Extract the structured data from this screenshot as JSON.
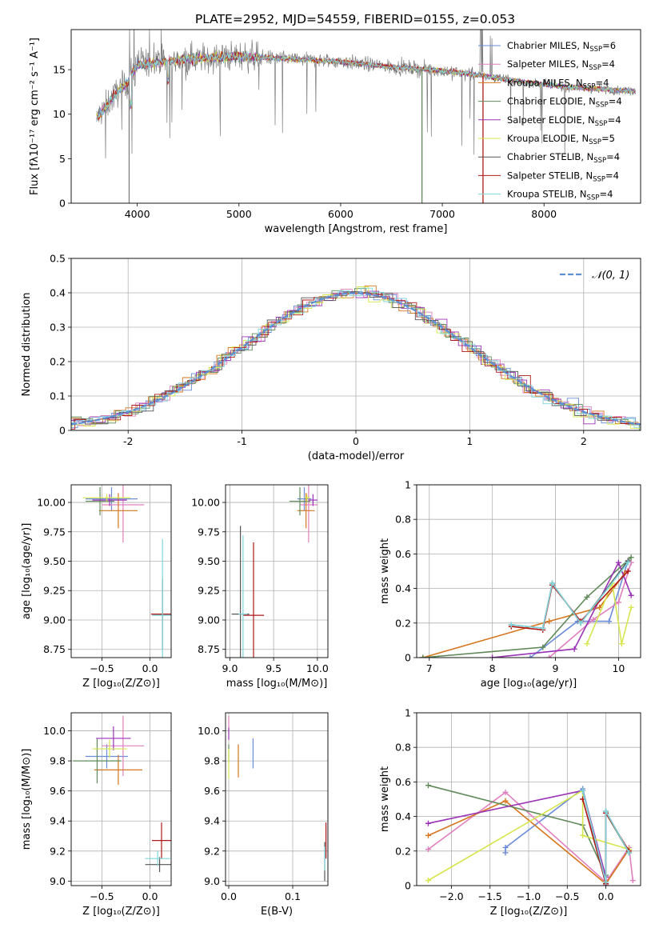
{
  "title": "PLATE=2952, MJD=54559, FIBERID=0155, z=0.053",
  "colors": [
    "#6a8cd8",
    "#e07fbf",
    "#d6761e",
    "#5f8a58",
    "#9a33b5",
    "#d6e64c",
    "#555555",
    "#b01818",
    "#7fd6dc"
  ],
  "chart_data": [
    {
      "id": "spectrum",
      "type": "line",
      "xlabel": "wavelength [Angstrom, rest frame]",
      "ylabel": "Flux [fλ10⁻¹⁷ erg cm⁻² s⁻¹ A⁻¹]",
      "xlim": [
        3350,
        8950
      ],
      "ylim": [
        0,
        19.5
      ],
      "xticks": [
        4000,
        5000,
        6000,
        7000,
        8000
      ],
      "yticks": [
        0,
        5,
        10,
        15
      ],
      "grid": false,
      "legend": "top-right",
      "legend_entries": [
        "Chabrier MILES, N_SSP=6",
        "Salpeter MILES, N_SSP=4",
        "Kroupa MILES, N_SSP=4",
        "Chabrier ELODIE, N_SSP=4",
        "Salpeter ELODIE, N_SSP=4",
        "Kroupa ELODIE, N_SSP=5",
        "Chabrier STELIB, N_SSP=4",
        "Salpeter STELIB, N_SSP=4",
        "Kroupa STELIB, N_SSP=4"
      ],
      "continuum": [
        [
          3600,
          9.5
        ],
        [
          3700,
          11
        ],
        [
          3800,
          12.5
        ],
        [
          3900,
          13.5
        ],
        [
          4000,
          15.5
        ],
        [
          4200,
          15.8
        ],
        [
          4500,
          16.2
        ],
        [
          5000,
          16.5
        ],
        [
          5500,
          16.2
        ],
        [
          6000,
          15.9
        ],
        [
          6500,
          15.3
        ],
        [
          7000,
          14.9
        ],
        [
          7400,
          14.3
        ],
        [
          7800,
          13.6
        ],
        [
          8200,
          13.1
        ],
        [
          8700,
          12.7
        ],
        [
          8900,
          12.6
        ]
      ]
    },
    {
      "id": "residuals",
      "type": "histogram",
      "xlabel": "(data-model)/error",
      "ylabel": "Normed distribution",
      "xlim": [
        -2.5,
        2.5
      ],
      "ylim": [
        0,
        0.5
      ],
      "xticks": [
        -2,
        -1,
        0,
        1,
        2
      ],
      "yticks": [
        0.0,
        0.1,
        0.2,
        0.3,
        0.4,
        0.5
      ],
      "grid": true,
      "legend": "top-right",
      "legend_entries": [
        "𝒩(0, 1)"
      ],
      "bin_width": 0.1,
      "distribution": {
        "mean": 0,
        "sigma": 1
      }
    },
    {
      "id": "age-vs-Z",
      "type": "errorbar",
      "xlabel": "Z [log₁₀(Z/Z⊙)]",
      "ylabel": "age  [log₁₀(age/yr)]",
      "xlim": [
        -0.82,
        0.22
      ],
      "ylim": [
        8.68,
        10.15
      ],
      "xticks": [
        -0.5,
        0.0
      ],
      "xtick_labels": [
        "−0.5",
        "0.0"
      ],
      "yticks": [
        8.75,
        9.0,
        9.25,
        9.5,
        9.75,
        10.0
      ],
      "ytick_labels": [
        "8.75",
        "9.00",
        "9.25",
        "9.50",
        "9.75",
        "10.00"
      ],
      "grid": true,
      "points": [
        {
          "x": -0.4,
          "y": 10.03,
          "xerr": 0.27,
          "yerr": 0.1,
          "c": 0
        },
        {
          "x": -0.28,
          "y": 9.98,
          "xerr": 0.22,
          "yerr": 0.32,
          "c": 1
        },
        {
          "x": -0.33,
          "y": 9.93,
          "xerr": 0.2,
          "yerr": 0.15,
          "c": 2
        },
        {
          "x": -0.52,
          "y": 10.01,
          "xerr": 0.15,
          "yerr": 0.12,
          "c": 3
        },
        {
          "x": -0.42,
          "y": 10.02,
          "xerr": 0.18,
          "yerr": 0.05,
          "c": 4
        },
        {
          "x": -0.45,
          "y": 10.04,
          "xerr": 0.25,
          "yerr": 0.03,
          "c": 5
        },
        {
          "x": 0.13,
          "y": 9.05,
          "xerr": 0.1,
          "yerr": 0.3,
          "c": 6
        },
        {
          "x": 0.13,
          "y": 9.05,
          "xerr": 0.12,
          "yerr": 0.03,
          "c": 7
        },
        {
          "x": 0.13,
          "y": 9.04,
          "xerr": 0.11,
          "yerr": 0.65,
          "c": 8
        }
      ]
    },
    {
      "id": "age-vs-mass",
      "type": "errorbar",
      "xlabel": "mass [log₁₀(M/M⊙)]",
      "ylabel": "",
      "xlim": [
        8.95,
        10.12
      ],
      "ylim": [
        8.68,
        10.15
      ],
      "xticks": [
        9.0,
        9.5,
        10.0
      ],
      "xtick_labels": [
        "9.0",
        "9.5",
        "10.0"
      ],
      "yticks": [
        8.75,
        9.0,
        9.25,
        9.5,
        9.75,
        10.0
      ],
      "ytick_labels": [
        "8.75",
        "9.00",
        "9.25",
        "9.50",
        "9.75",
        "10.00"
      ],
      "grid": true,
      "points": [
        {
          "x": 9.85,
          "y": 10.03,
          "xerr": 0.08,
          "yerr": 0.1,
          "c": 0
        },
        {
          "x": 9.9,
          "y": 9.98,
          "xerr": 0.1,
          "yerr": 0.32,
          "c": 1
        },
        {
          "x": 9.87,
          "y": 9.93,
          "xerr": 0.1,
          "yerr": 0.15,
          "c": 2
        },
        {
          "x": 9.8,
          "y": 10.01,
          "xerr": 0.12,
          "yerr": 0.12,
          "c": 3
        },
        {
          "x": 9.95,
          "y": 10.02,
          "xerr": 0.05,
          "yerr": 0.05,
          "c": 4
        },
        {
          "x": 9.88,
          "y": 10.04,
          "xerr": 0.03,
          "yerr": 0.03,
          "c": 5
        },
        {
          "x": 9.12,
          "y": 9.05,
          "xerr": 0.1,
          "yerr": 0.75,
          "c": 6
        },
        {
          "x": 9.27,
          "y": 9.04,
          "xerr": 0.12,
          "yerr": 0.62,
          "c": 7
        },
        {
          "x": 9.15,
          "y": 9.05,
          "xerr": 0.05,
          "yerr": 0.67,
          "c": 8
        }
      ]
    },
    {
      "id": "mass-weight-vs-age",
      "type": "line",
      "xlabel": "age  [log₁₀(age/yr)]",
      "ylabel": "mass weight",
      "xlim": [
        6.8,
        10.35
      ],
      "ylim": [
        0,
        1
      ],
      "xticks": [
        7,
        8,
        9,
        10
      ],
      "yticks": [
        0.0,
        0.2,
        0.4,
        0.6,
        0.8,
        1.0
      ],
      "grid": true,
      "series": [
        {
          "c": 0,
          "x": [
            8.6,
            9.35,
            9.85,
            10.15
          ],
          "y": [
            0.0,
            0.21,
            0.21,
            0.56
          ]
        },
        {
          "c": 1,
          "x": [
            8.9,
            9.6,
            10.0,
            10.2
          ],
          "y": [
            0.0,
            0.22,
            0.32,
            0.55
          ]
        },
        {
          "c": 2,
          "x": [
            6.9,
            8.9,
            9.7,
            10.1
          ],
          "y": [
            0.0,
            0.21,
            0.29,
            0.49
          ]
        },
        {
          "c": 3,
          "x": [
            6.9,
            8.8,
            9.5,
            10.2
          ],
          "y": [
            0.0,
            0.06,
            0.35,
            0.58
          ]
        },
        {
          "c": 4,
          "x": [
            8.0,
            9.3,
            10.0,
            10.2
          ],
          "y": [
            0.0,
            0.05,
            0.55,
            0.36
          ]
        },
        {
          "c": 5,
          "x": [
            9.5,
            9.9,
            10.05,
            10.2
          ],
          "y": [
            0.08,
            0.43,
            0.08,
            0.29
          ]
        },
        {
          "c": 6,
          "x": [
            8.3,
            8.8,
            8.95,
            9.4,
            10.15
          ],
          "y": [
            0.19,
            0.17,
            0.43,
            0.2,
            0.56
          ]
        },
        {
          "c": 7,
          "x": [
            8.3,
            8.8,
            8.95,
            9.4,
            10.15
          ],
          "y": [
            0.18,
            0.16,
            0.42,
            0.21,
            0.5
          ]
        },
        {
          "c": 8,
          "x": [
            8.3,
            8.8,
            8.95,
            9.4,
            10.15
          ],
          "y": [
            0.19,
            0.17,
            0.43,
            0.2,
            0.55
          ]
        }
      ]
    },
    {
      "id": "mass-vs-Z",
      "type": "errorbar",
      "xlabel": "Z [log₁₀(Z/Z⊙)]",
      "ylabel": "mass [log₁₀(M/M⊙)]",
      "xlim": [
        -0.82,
        0.22
      ],
      "ylim": [
        8.97,
        10.12
      ],
      "xticks": [
        -0.5,
        0.0
      ],
      "xtick_labels": [
        "−0.5",
        "0.0"
      ],
      "yticks": [
        9.0,
        9.2,
        9.4,
        9.6,
        9.8,
        10.0
      ],
      "ytick_labels": [
        "9.0",
        "9.2",
        "9.4",
        "9.6",
        "9.8",
        "10.0"
      ],
      "grid": true,
      "points": [
        {
          "x": -0.45,
          "y": 9.83,
          "xerr": 0.22,
          "yerr": 0.08,
          "c": 0
        },
        {
          "x": -0.28,
          "y": 9.9,
          "xerr": 0.22,
          "yerr": 0.2,
          "c": 1
        },
        {
          "x": -0.33,
          "y": 9.74,
          "xerr": 0.25,
          "yerr": 0.1,
          "c": 2
        },
        {
          "x": -0.55,
          "y": 9.8,
          "xerr": 0.25,
          "yerr": 0.15,
          "c": 3
        },
        {
          "x": -0.38,
          "y": 9.95,
          "xerr": 0.18,
          "yerr": 0.08,
          "c": 4
        },
        {
          "x": -0.42,
          "y": 9.88,
          "xerr": 0.18,
          "yerr": 0.06,
          "c": 5
        },
        {
          "x": 0.1,
          "y": 9.11,
          "xerr": 0.15,
          "yerr": 0.05,
          "c": 6
        },
        {
          "x": 0.12,
          "y": 9.27,
          "xerr": 0.1,
          "yerr": 0.12,
          "c": 7
        },
        {
          "x": 0.08,
          "y": 9.15,
          "xerr": 0.13,
          "yerr": 0.05,
          "c": 8
        }
      ]
    },
    {
      "id": "mass-vs-EBV",
      "type": "errorbar",
      "xlabel": "E(B-V)",
      "ylabel": "",
      "xlim": [
        -0.005,
        0.155
      ],
      "ylim": [
        8.97,
        10.12
      ],
      "xticks": [
        0.0,
        0.1
      ],
      "xtick_labels": [
        "0.0",
        "0.1"
      ],
      "yticks": [
        9.0,
        9.2,
        9.4,
        9.6,
        9.8,
        10.0
      ],
      "ytick_labels": [
        "9.0",
        "9.2",
        "9.4",
        "9.6",
        "9.8",
        "10.0"
      ],
      "grid": true,
      "points": [
        {
          "x": 0.038,
          "y": 9.85,
          "xerr": 0,
          "yerr": 0.1,
          "c": 0
        },
        {
          "x": 0.0,
          "y": 10.05,
          "xerr": 0,
          "yerr": 0.05,
          "c": 1
        },
        {
          "x": 0.015,
          "y": 9.8,
          "xerr": 0,
          "yerr": 0.11,
          "c": 2
        },
        {
          "x": 0.0,
          "y": 9.85,
          "xerr": 0,
          "yerr": 0.06,
          "c": 3
        },
        {
          "x": 0.0,
          "y": 9.98,
          "xerr": 0,
          "yerr": 0.04,
          "c": 4
        },
        {
          "x": 0.0,
          "y": 9.78,
          "xerr": 0,
          "yerr": 0.1,
          "c": 5
        },
        {
          "x": 0.15,
          "y": 9.13,
          "xerr": 0,
          "yerr": 0.13,
          "c": 6
        },
        {
          "x": 0.152,
          "y": 9.27,
          "xerr": 0,
          "yerr": 0.12,
          "c": 7
        },
        {
          "x": 0.15,
          "y": 9.15,
          "xerr": 0,
          "yerr": 0.08,
          "c": 8
        }
      ]
    },
    {
      "id": "mass-weight-vs-Z",
      "type": "line",
      "xlabel": "Z [log₁₀(Z/Z⊙)]",
      "ylabel": "mass weight",
      "xlim": [
        -2.45,
        0.45
      ],
      "ylim": [
        0,
        1
      ],
      "xticks": [
        -2.0,
        -1.5,
        -1.0,
        -0.5,
        0.0
      ],
      "xtick_labels": [
        "−2.0",
        "−1.5",
        "−1.0",
        "−0.5",
        "0.0"
      ],
      "yticks": [
        0.0,
        0.2,
        0.4,
        0.6,
        0.8,
        1.0
      ],
      "grid": true,
      "series": [
        {
          "c": 0,
          "x": [
            -1.3,
            -1.3,
            -0.3,
            0.0,
            0.0,
            0.3
          ],
          "y": [
            0.19,
            0.22,
            0.56,
            0.02,
            0.02,
            0.21
          ]
        },
        {
          "c": 1,
          "x": [
            -2.3,
            -1.3,
            0.0,
            0.3,
            0.35
          ],
          "y": [
            0.21,
            0.54,
            0.02,
            0.22,
            0.03
          ]
        },
        {
          "c": 2,
          "x": [
            -2.3,
            -1.3,
            0.0,
            0.3,
            0.3
          ],
          "y": [
            0.29,
            0.49,
            0.01,
            0.21,
            0.2
          ]
        },
        {
          "c": 3,
          "x": [
            -2.3,
            -0.3,
            0.0,
            0.0,
            0.3
          ],
          "y": [
            0.58,
            0.35,
            0.06,
            0.42,
            0.19
          ]
        },
        {
          "c": 4,
          "x": [
            -2.3,
            -0.3,
            0.0,
            0.0
          ],
          "y": [
            0.36,
            0.55,
            0.05,
            0.0
          ]
        },
        {
          "c": 5,
          "x": [
            -2.3,
            -0.3,
            -0.3,
            0.3
          ],
          "y": [
            0.03,
            0.55,
            0.29,
            0.21
          ]
        },
        {
          "c": 6,
          "x": [
            -0.3,
            0.0,
            0.0,
            0.3
          ],
          "y": [
            0.55,
            0.01,
            0.43,
            0.19
          ]
        },
        {
          "c": 7,
          "x": [
            -0.3,
            0.0,
            0.0,
            0.3
          ],
          "y": [
            0.5,
            0.01,
            0.42,
            0.2
          ]
        },
        {
          "c": 8,
          "x": [
            -0.3,
            0.0,
            0.0,
            0.3
          ],
          "y": [
            0.55,
            0.02,
            0.43,
            0.19
          ]
        }
      ]
    }
  ]
}
